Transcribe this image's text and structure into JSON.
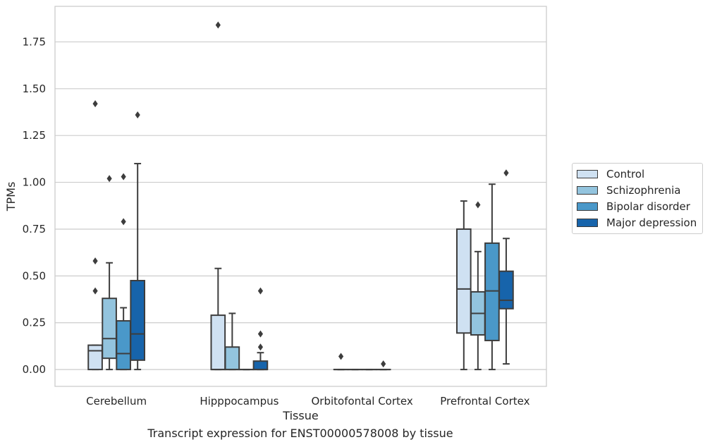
{
  "caption": "Transcript expression for ENST00000578008 by tissue",
  "chart_data": {
    "type": "box",
    "xlabel": "Tissue",
    "ylabel": "TPMs",
    "ylim": [
      -0.09,
      1.94
    ],
    "yticks": [
      0.0,
      0.25,
      0.5,
      0.75,
      1.0,
      1.25,
      1.5,
      1.75
    ],
    "ytick_labels": [
      "0.00",
      "0.25",
      "0.50",
      "0.75",
      "1.00",
      "1.25",
      "1.50",
      "1.75"
    ],
    "grid": "horizontal",
    "legend_position": "right",
    "categories": [
      "Cerebellum",
      "Hipppocampus",
      "Orbitofontal Cortex",
      "Prefrontal Cortex"
    ],
    "series": [
      {
        "name": "Control",
        "color": "#cfe1f2",
        "boxes": [
          {
            "whislo": 0.0,
            "q1": 0.0,
            "med": 0.1,
            "q3": 0.13,
            "whishi": 0.13,
            "fliers": [
              0.42,
              0.58,
              1.42
            ]
          },
          {
            "whislo": 0.0,
            "q1": 0.0,
            "med": 0.0,
            "q3": 0.29,
            "whishi": 0.54,
            "fliers": [
              1.84
            ]
          },
          {
            "whislo": 0.0,
            "q1": 0.0,
            "med": 0.0,
            "q3": 0.0,
            "whishi": 0.0,
            "fliers": [
              0.07
            ]
          },
          {
            "whislo": 0.0,
            "q1": 0.195,
            "med": 0.43,
            "q3": 0.75,
            "whishi": 0.9,
            "fliers": []
          }
        ]
      },
      {
        "name": "Schizophrenia",
        "color": "#93c4de",
        "boxes": [
          {
            "whislo": 0.0,
            "q1": 0.06,
            "med": 0.165,
            "q3": 0.38,
            "whishi": 0.57,
            "fliers": [
              1.02
            ]
          },
          {
            "whislo": 0.0,
            "q1": 0.0,
            "med": 0.0,
            "q3": 0.12,
            "whishi": 0.3,
            "fliers": []
          },
          {
            "whislo": 0.0,
            "q1": 0.0,
            "med": 0.0,
            "q3": 0.0,
            "whishi": 0.0,
            "fliers": []
          },
          {
            "whislo": 0.0,
            "q1": 0.185,
            "med": 0.3,
            "q3": 0.415,
            "whishi": 0.63,
            "fliers": [
              0.88
            ]
          }
        ]
      },
      {
        "name": "Bipolar disorder",
        "color": "#4a98c9",
        "boxes": [
          {
            "whislo": 0.0,
            "q1": 0.0,
            "med": 0.085,
            "q3": 0.26,
            "whishi": 0.33,
            "fliers": [
              0.79,
              1.03
            ]
          },
          {
            "whislo": 0.0,
            "q1": 0.0,
            "med": 0.0,
            "q3": 0.0,
            "whishi": 0.0,
            "fliers": []
          },
          {
            "whislo": 0.0,
            "q1": 0.0,
            "med": 0.0,
            "q3": 0.0,
            "whishi": 0.0,
            "fliers": []
          },
          {
            "whislo": 0.0,
            "q1": 0.155,
            "med": 0.42,
            "q3": 0.675,
            "whishi": 0.99,
            "fliers": []
          }
        ]
      },
      {
        "name": "Major depression",
        "color": "#1764ab",
        "boxes": [
          {
            "whislo": 0.0,
            "q1": 0.05,
            "med": 0.19,
            "q3": 0.475,
            "whishi": 1.1,
            "fliers": [
              1.36
            ]
          },
          {
            "whislo": 0.0,
            "q1": 0.0,
            "med": 0.0,
            "q3": 0.045,
            "whishi": 0.09,
            "fliers": [
              0.12,
              0.19,
              0.42
            ]
          },
          {
            "whislo": 0.0,
            "q1": 0.0,
            "med": 0.0,
            "q3": 0.0,
            "whishi": 0.0,
            "fliers": [
              0.03
            ]
          },
          {
            "whislo": 0.03,
            "q1": 0.325,
            "med": 0.37,
            "q3": 0.525,
            "whishi": 0.7,
            "fliers": [
              1.05
            ]
          }
        ]
      }
    ]
  }
}
